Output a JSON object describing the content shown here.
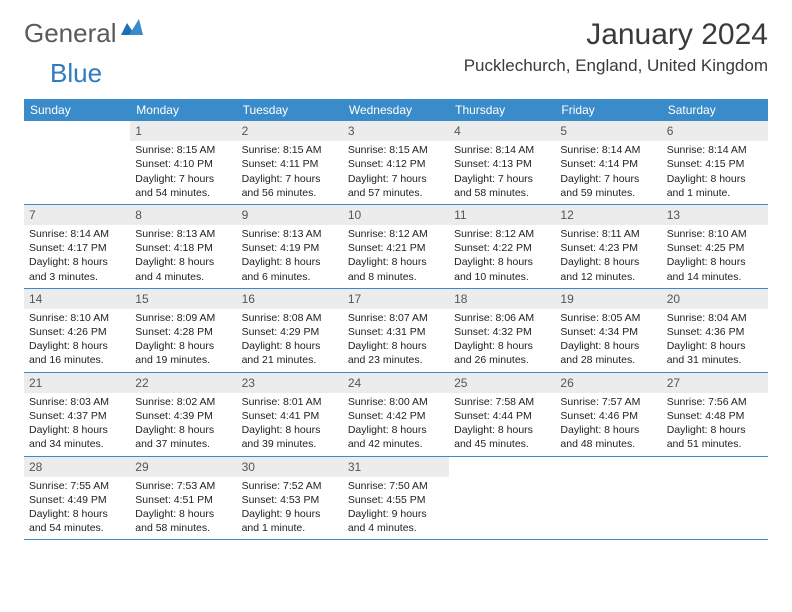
{
  "logo": {
    "word1": "General",
    "word2": "Blue"
  },
  "title": "January 2024",
  "location": "Pucklechurch, England, United Kingdom",
  "colors": {
    "header_bg": "#3a8bc9",
    "daynum_bg": "#ececec",
    "text": "#222222",
    "logo_gray": "#5a5a5a",
    "logo_blue": "#2f7bbf"
  },
  "weekdays": [
    "Sunday",
    "Monday",
    "Tuesday",
    "Wednesday",
    "Thursday",
    "Friday",
    "Saturday"
  ],
  "weeks": [
    [
      {
        "n": "",
        "sr": "",
        "ss": "",
        "dl": ""
      },
      {
        "n": "1",
        "sr": "Sunrise: 8:15 AM",
        "ss": "Sunset: 4:10 PM",
        "dl": "Daylight: 7 hours and 54 minutes."
      },
      {
        "n": "2",
        "sr": "Sunrise: 8:15 AM",
        "ss": "Sunset: 4:11 PM",
        "dl": "Daylight: 7 hours and 56 minutes."
      },
      {
        "n": "3",
        "sr": "Sunrise: 8:15 AM",
        "ss": "Sunset: 4:12 PM",
        "dl": "Daylight: 7 hours and 57 minutes."
      },
      {
        "n": "4",
        "sr": "Sunrise: 8:14 AM",
        "ss": "Sunset: 4:13 PM",
        "dl": "Daylight: 7 hours and 58 minutes."
      },
      {
        "n": "5",
        "sr": "Sunrise: 8:14 AM",
        "ss": "Sunset: 4:14 PM",
        "dl": "Daylight: 7 hours and 59 minutes."
      },
      {
        "n": "6",
        "sr": "Sunrise: 8:14 AM",
        "ss": "Sunset: 4:15 PM",
        "dl": "Daylight: 8 hours and 1 minute."
      }
    ],
    [
      {
        "n": "7",
        "sr": "Sunrise: 8:14 AM",
        "ss": "Sunset: 4:17 PM",
        "dl": "Daylight: 8 hours and 3 minutes."
      },
      {
        "n": "8",
        "sr": "Sunrise: 8:13 AM",
        "ss": "Sunset: 4:18 PM",
        "dl": "Daylight: 8 hours and 4 minutes."
      },
      {
        "n": "9",
        "sr": "Sunrise: 8:13 AM",
        "ss": "Sunset: 4:19 PM",
        "dl": "Daylight: 8 hours and 6 minutes."
      },
      {
        "n": "10",
        "sr": "Sunrise: 8:12 AM",
        "ss": "Sunset: 4:21 PM",
        "dl": "Daylight: 8 hours and 8 minutes."
      },
      {
        "n": "11",
        "sr": "Sunrise: 8:12 AM",
        "ss": "Sunset: 4:22 PM",
        "dl": "Daylight: 8 hours and 10 minutes."
      },
      {
        "n": "12",
        "sr": "Sunrise: 8:11 AM",
        "ss": "Sunset: 4:23 PM",
        "dl": "Daylight: 8 hours and 12 minutes."
      },
      {
        "n": "13",
        "sr": "Sunrise: 8:10 AM",
        "ss": "Sunset: 4:25 PM",
        "dl": "Daylight: 8 hours and 14 minutes."
      }
    ],
    [
      {
        "n": "14",
        "sr": "Sunrise: 8:10 AM",
        "ss": "Sunset: 4:26 PM",
        "dl": "Daylight: 8 hours and 16 minutes."
      },
      {
        "n": "15",
        "sr": "Sunrise: 8:09 AM",
        "ss": "Sunset: 4:28 PM",
        "dl": "Daylight: 8 hours and 19 minutes."
      },
      {
        "n": "16",
        "sr": "Sunrise: 8:08 AM",
        "ss": "Sunset: 4:29 PM",
        "dl": "Daylight: 8 hours and 21 minutes."
      },
      {
        "n": "17",
        "sr": "Sunrise: 8:07 AM",
        "ss": "Sunset: 4:31 PM",
        "dl": "Daylight: 8 hours and 23 minutes."
      },
      {
        "n": "18",
        "sr": "Sunrise: 8:06 AM",
        "ss": "Sunset: 4:32 PM",
        "dl": "Daylight: 8 hours and 26 minutes."
      },
      {
        "n": "19",
        "sr": "Sunrise: 8:05 AM",
        "ss": "Sunset: 4:34 PM",
        "dl": "Daylight: 8 hours and 28 minutes."
      },
      {
        "n": "20",
        "sr": "Sunrise: 8:04 AM",
        "ss": "Sunset: 4:36 PM",
        "dl": "Daylight: 8 hours and 31 minutes."
      }
    ],
    [
      {
        "n": "21",
        "sr": "Sunrise: 8:03 AM",
        "ss": "Sunset: 4:37 PM",
        "dl": "Daylight: 8 hours and 34 minutes."
      },
      {
        "n": "22",
        "sr": "Sunrise: 8:02 AM",
        "ss": "Sunset: 4:39 PM",
        "dl": "Daylight: 8 hours and 37 minutes."
      },
      {
        "n": "23",
        "sr": "Sunrise: 8:01 AM",
        "ss": "Sunset: 4:41 PM",
        "dl": "Daylight: 8 hours and 39 minutes."
      },
      {
        "n": "24",
        "sr": "Sunrise: 8:00 AM",
        "ss": "Sunset: 4:42 PM",
        "dl": "Daylight: 8 hours and 42 minutes."
      },
      {
        "n": "25",
        "sr": "Sunrise: 7:58 AM",
        "ss": "Sunset: 4:44 PM",
        "dl": "Daylight: 8 hours and 45 minutes."
      },
      {
        "n": "26",
        "sr": "Sunrise: 7:57 AM",
        "ss": "Sunset: 4:46 PM",
        "dl": "Daylight: 8 hours and 48 minutes."
      },
      {
        "n": "27",
        "sr": "Sunrise: 7:56 AM",
        "ss": "Sunset: 4:48 PM",
        "dl": "Daylight: 8 hours and 51 minutes."
      }
    ],
    [
      {
        "n": "28",
        "sr": "Sunrise: 7:55 AM",
        "ss": "Sunset: 4:49 PM",
        "dl": "Daylight: 8 hours and 54 minutes."
      },
      {
        "n": "29",
        "sr": "Sunrise: 7:53 AM",
        "ss": "Sunset: 4:51 PM",
        "dl": "Daylight: 8 hours and 58 minutes."
      },
      {
        "n": "30",
        "sr": "Sunrise: 7:52 AM",
        "ss": "Sunset: 4:53 PM",
        "dl": "Daylight: 9 hours and 1 minute."
      },
      {
        "n": "31",
        "sr": "Sunrise: 7:50 AM",
        "ss": "Sunset: 4:55 PM",
        "dl": "Daylight: 9 hours and 4 minutes."
      },
      {
        "n": "",
        "sr": "",
        "ss": "",
        "dl": ""
      },
      {
        "n": "",
        "sr": "",
        "ss": "",
        "dl": ""
      },
      {
        "n": "",
        "sr": "",
        "ss": "",
        "dl": ""
      }
    ]
  ]
}
